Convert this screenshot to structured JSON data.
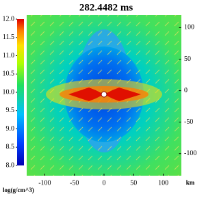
{
  "chart_data": {
    "type": "heatmap",
    "title": "282.4482 ms",
    "xlim": [
      -130,
      130
    ],
    "xticks": [
      -100,
      -50,
      0,
      50,
      100
    ],
    "x_unit": "km",
    "ylim": [
      -135,
      120
    ],
    "yticks": [
      100,
      50,
      0,
      -50,
      -100
    ],
    "colorbar": {
      "label": "log(g/cm^3)",
      "lim": [
        8,
        12
      ],
      "ticks": [
        {
          "value": 8,
          "label": "8.0"
        },
        {
          "value": 8.5,
          "label": "8.5"
        },
        {
          "value": 9,
          "label": "9.0"
        },
        {
          "value": 9.5,
          "label": "9.5"
        },
        {
          "value": 10,
          "label": "10.0"
        },
        {
          "value": 10.5,
          "label": "10.5"
        },
        {
          "value": 11,
          "label": "11.0"
        },
        {
          "value": 11.5,
          "label": "11.5"
        },
        {
          "value": 12,
          "label": "12.0"
        }
      ]
    }
  }
}
